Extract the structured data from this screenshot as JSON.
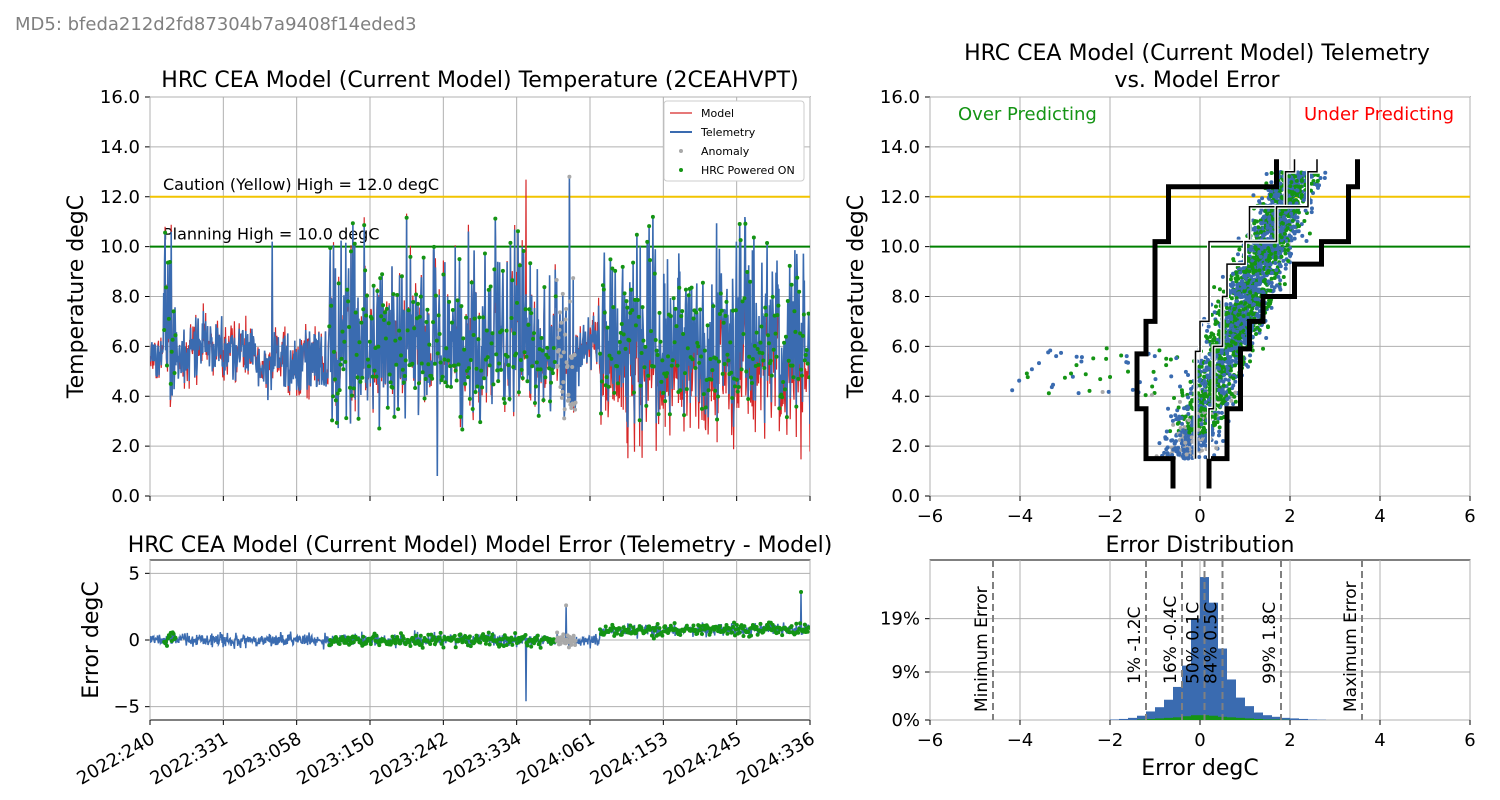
{
  "md5_label": "MD5: bfeda212d2fd87304b7a9408f14eded3",
  "colors": {
    "model": "#d62728",
    "telemetry": "#3a6bb0",
    "anomaly": "#a9a9a9",
    "powered_on": "#149414",
    "caution": "#f2c400",
    "planning": "#008000",
    "grid": "#b0b0b0",
    "bound": "#000000"
  },
  "chart_data": [
    {
      "id": "temperature",
      "type": "line",
      "title": "HRC CEA Model (Current Model) Temperature (2CEAHVPT)",
      "xlabel": "",
      "ylabel": "Temperature degC",
      "x_ticks": [
        "2022:240",
        "2022:331",
        "2023:058",
        "2023:150",
        "2023:242",
        "2023:334",
        "2024:061",
        "2024:153",
        "2024:245",
        "2024:336"
      ],
      "y_ticks": [
        "0.0",
        "2.0",
        "4.0",
        "6.0",
        "8.0",
        "10.0",
        "12.0",
        "14.0",
        "16.0"
      ],
      "ylim": [
        0,
        16
      ],
      "grid": true,
      "legend": {
        "placement": "top-right",
        "entries": [
          "Model",
          "Telemetry",
          "Anomaly",
          "HRC Powered ON"
        ]
      },
      "annotations": [
        "Caution (Yellow) High = 12.0 degC",
        "Planning High = 10.0 degC"
      ],
      "limits": [
        {
          "name": "Caution (Yellow) High",
          "value": 12.0
        },
        {
          "name": "Planning High",
          "value": 10.0
        }
      ],
      "approx_range": {
        "typical_min": 3.0,
        "typical_max": 11.5,
        "peak": 12.9,
        "trough": 0.7
      }
    },
    {
      "id": "telemetry_vs_error",
      "type": "scatter",
      "title_lines": [
        "HRC CEA Model (Current Model) Telemetry",
        "vs. Model Error"
      ],
      "xlabel": "",
      "ylabel": "Temperature degC",
      "xlim": [
        -6,
        6
      ],
      "ylim": [
        0,
        16
      ],
      "x_ticks": [
        "−6",
        "−4",
        "−2",
        "0",
        "2",
        "4",
        "6"
      ],
      "y_ticks": [
        "0.0",
        "2.0",
        "4.0",
        "6.0",
        "8.0",
        "10.0",
        "12.0",
        "14.0",
        "16.0"
      ],
      "grid": true,
      "annotations": [
        "Over Predicting",
        "Under Predicting"
      ],
      "limits": [
        12.0,
        10.0
      ],
      "outer_bands": {
        "lower": [
          [
            -0.6,
            0.3
          ],
          [
            -0.6,
            1.5
          ],
          [
            -1.2,
            1.5
          ],
          [
            -1.2,
            3.5
          ],
          [
            -1.4,
            3.5
          ],
          [
            -1.4,
            5.7
          ],
          [
            -1.2,
            5.7
          ],
          [
            -1.2,
            7.0
          ],
          [
            -1.0,
            7.0
          ],
          [
            -1.0,
            10.2
          ],
          [
            -0.7,
            10.2
          ],
          [
            -0.7,
            12.4
          ],
          [
            1.7,
            12.4
          ],
          [
            1.7,
            13.5
          ]
        ],
        "upper": [
          [
            0.2,
            0.3
          ],
          [
            0.2,
            1.5
          ],
          [
            0.6,
            1.5
          ],
          [
            0.6,
            3.5
          ],
          [
            0.9,
            3.5
          ],
          [
            0.9,
            5.9
          ],
          [
            1.1,
            5.9
          ],
          [
            1.1,
            7.0
          ],
          [
            1.4,
            7.0
          ],
          [
            1.4,
            8.0
          ],
          [
            2.1,
            8.0
          ],
          [
            2.1,
            9.3
          ],
          [
            2.7,
            9.3
          ],
          [
            2.7,
            10.2
          ],
          [
            3.3,
            10.2
          ],
          [
            3.3,
            12.4
          ],
          [
            3.5,
            12.4
          ],
          [
            3.5,
            13.5
          ]
        ]
      },
      "inner_bands": {
        "lower": [
          [
            -0.1,
            1.5
          ],
          [
            -0.1,
            5.8
          ],
          [
            0.0,
            5.8
          ],
          [
            0.0,
            7.0
          ],
          [
            0.2,
            7.0
          ],
          [
            0.2,
            10.2
          ],
          [
            1.1,
            10.2
          ],
          [
            1.1,
            11.6
          ],
          [
            1.9,
            11.6
          ],
          [
            1.9,
            13.0
          ],
          [
            2.1,
            13.0
          ],
          [
            2.1,
            13.5
          ]
        ],
        "upper": [
          [
            0.2,
            1.5
          ],
          [
            0.2,
            3.5
          ],
          [
            0.3,
            3.5
          ],
          [
            0.3,
            6.0
          ],
          [
            0.5,
            6.0
          ],
          [
            0.5,
            8.0
          ],
          [
            0.6,
            8.0
          ],
          [
            0.6,
            9.3
          ],
          [
            1.0,
            9.3
          ],
          [
            1.0,
            10.2
          ],
          [
            1.7,
            10.2
          ],
          [
            1.7,
            11.6
          ],
          [
            2.4,
            11.6
          ],
          [
            2.4,
            13.0
          ],
          [
            2.6,
            13.0
          ],
          [
            2.6,
            13.5
          ]
        ]
      }
    },
    {
      "id": "model_error",
      "type": "line",
      "title": "HRC CEA Model (Current Model) Model Error (Telemetry - Model)",
      "xlabel": "",
      "ylabel": "Error degC",
      "ylim": [
        -6,
        6
      ],
      "y_ticks": [
        "−5",
        "0",
        "5"
      ],
      "x_ticks": [
        "2022:240",
        "2022:331",
        "2023:058",
        "2023:150",
        "2023:242",
        "2023:334",
        "2024:061",
        "2024:153",
        "2024:245",
        "2024:336"
      ],
      "grid": true,
      "approx_range": {
        "typical": [
          -1.2,
          1.5
        ],
        "spike_min": -4.6,
        "spike_max": 3.6
      }
    },
    {
      "id": "error_distribution",
      "type": "bar",
      "title": "Error Distribution",
      "xlabel": "Error degC",
      "ylabel": "",
      "xlim": [
        -6,
        6
      ],
      "x_ticks": [
        "−6",
        "−4",
        "−2",
        "0",
        "2",
        "4",
        "6"
      ],
      "y_ticks": [
        "0%",
        "9%",
        "19%"
      ],
      "grid": true,
      "bins_center": [
        -1.9,
        -1.7,
        -1.5,
        -1.3,
        -1.1,
        -0.9,
        -0.7,
        -0.5,
        -0.3,
        -0.1,
        0.1,
        0.3,
        0.5,
        0.7,
        0.9,
        1.1,
        1.3,
        1.5,
        1.7,
        1.9,
        2.1,
        2.3,
        2.5,
        2.7
      ],
      "bins_percent": [
        0.1,
        0.2,
        0.4,
        0.8,
        1.6,
        2.4,
        3.8,
        6.2,
        10.2,
        19.0,
        26.8,
        22.0,
        13.4,
        7.6,
        4.2,
        2.6,
        1.4,
        0.9,
        0.6,
        0.4,
        0.3,
        0.2,
        0.1,
        0.05
      ],
      "powered_on_bins_percent": [
        0.0,
        0.0,
        0.0,
        0.1,
        0.2,
        0.3,
        0.4,
        0.5,
        0.7,
        0.9,
        0.9,
        0.8,
        0.6,
        0.5,
        0.4,
        0.3,
        0.2,
        0.1,
        0.1,
        0.05,
        0.0,
        0.0,
        0.0,
        0.0
      ],
      "quantile_lines": [
        {
          "label": "Minimum Error",
          "value": -4.6
        },
        {
          "label": "1% -1.2C",
          "value": -1.2
        },
        {
          "label": "16% -0.4C",
          "value": -0.4
        },
        {
          "label": "50% 0.1C",
          "value": 0.1
        },
        {
          "label": "84%  0.5C",
          "value": 0.5
        },
        {
          "label": "99%  1.8C",
          "value": 1.8
        },
        {
          "label": "Maximum Error",
          "value": 3.6
        }
      ]
    }
  ]
}
